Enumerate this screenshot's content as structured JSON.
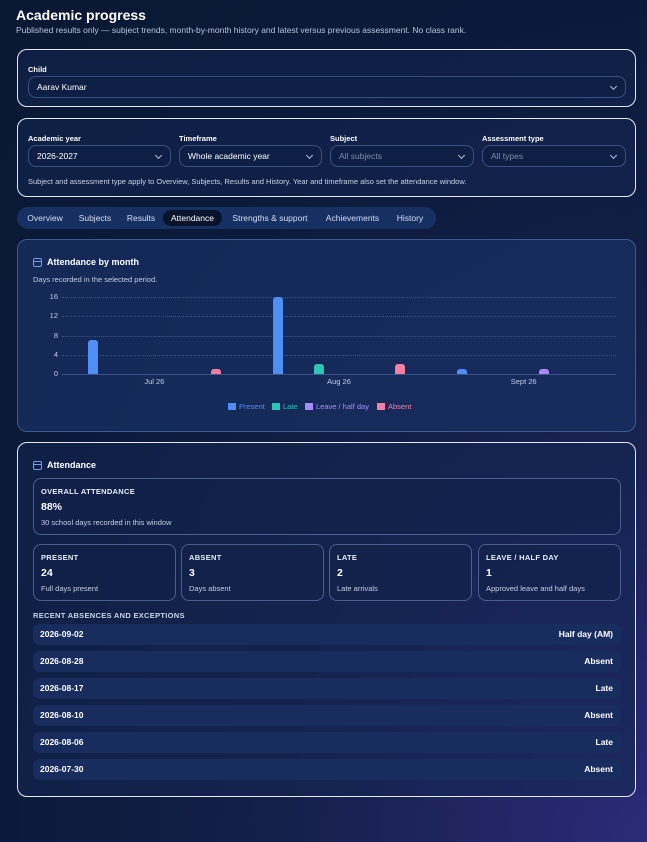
{
  "header": {
    "title": "Academic progress",
    "subtitle": "Published results only — subject trends, month-by-month history and latest versus previous assessment. No class rank."
  },
  "child": {
    "label": "Child",
    "value": "Aarav Kumar"
  },
  "filters": {
    "year": {
      "label": "Academic year",
      "value": "2026-2027"
    },
    "timeframe": {
      "label": "Timeframe",
      "value": "Whole academic year"
    },
    "subject": {
      "label": "Subject",
      "value": "All subjects"
    },
    "assessment": {
      "label": "Assessment type",
      "value": "All types"
    },
    "note": "Subject and assessment type apply to Overview, Subjects, Results and History. Year and timeframe also set the attendance window."
  },
  "tabs": [
    {
      "label": "Overview"
    },
    {
      "label": "Subjects"
    },
    {
      "label": "Results"
    },
    {
      "label": "Attendance",
      "active": true
    },
    {
      "label": "Strengths & support"
    },
    {
      "label": "Achievements"
    },
    {
      "label": "History"
    }
  ],
  "attendance_chart": {
    "title": "Attendance by month",
    "subtitle": "Days recorded in the selected period."
  },
  "chart_data": {
    "type": "bar",
    "categories": [
      "Jul 26",
      "Aug 26",
      "Sept 26"
    ],
    "ylim": [
      0,
      16
    ],
    "yticks": [
      "16",
      "12",
      "8",
      "4",
      "0"
    ],
    "grid": true,
    "legend_position": "bottom",
    "series": [
      {
        "name": "Present",
        "color": "#4f8df7",
        "values": [
          7,
          16,
          1
        ]
      },
      {
        "name": "Late",
        "color": "#2ec4b6",
        "values": [
          0,
          2,
          0
        ]
      },
      {
        "name": "Leave / half day",
        "color": "#a78bfa",
        "values": [
          0,
          0,
          1
        ]
      },
      {
        "name": "Absent",
        "color": "#f47fa6",
        "values": [
          1,
          2,
          0
        ]
      }
    ]
  },
  "attendance": {
    "title": "Attendance",
    "overall": {
      "label": "OVERALL ATTENDANCE",
      "value": "88%",
      "sub": "30 school days recorded in this window"
    },
    "stats": [
      {
        "label": "PRESENT",
        "value": "24",
        "sub": "Full days present"
      },
      {
        "label": "ABSENT",
        "value": "3",
        "sub": "Days absent"
      },
      {
        "label": "LATE",
        "value": "2",
        "sub": "Late arrivals"
      },
      {
        "label": "LEAVE / HALF DAY",
        "value": "1",
        "sub": "Approved leave and half days"
      }
    ],
    "exceptions_title": "RECENT ABSENCES AND EXCEPTIONS",
    "exceptions": [
      {
        "date": "2026-09-02",
        "status": "Half day (AM)"
      },
      {
        "date": "2026-08-28",
        "status": "Absent"
      },
      {
        "date": "2026-08-17",
        "status": "Late"
      },
      {
        "date": "2026-08-10",
        "status": "Absent"
      },
      {
        "date": "2026-08-06",
        "status": "Late"
      },
      {
        "date": "2026-07-30",
        "status": "Absent"
      }
    ]
  }
}
